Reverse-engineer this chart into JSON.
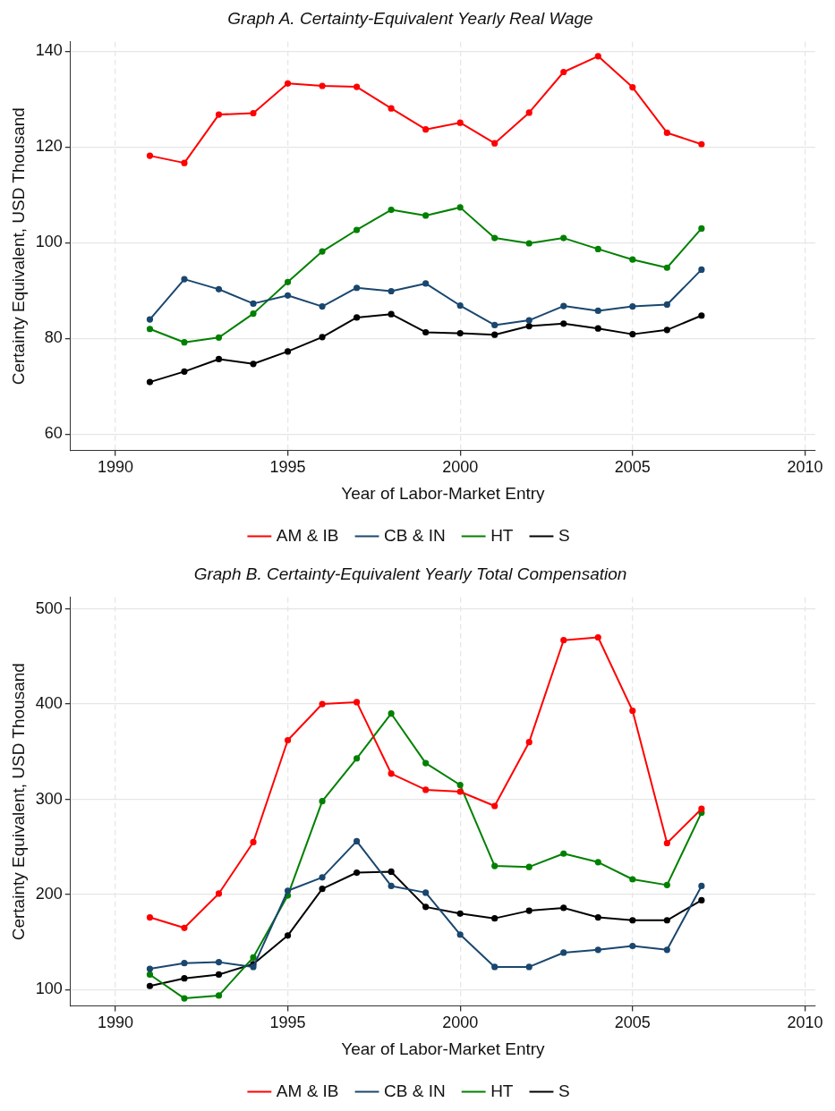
{
  "chart_data": [
    {
      "type": "line",
      "title": "Graph A. Certainty-Equivalent Yearly Real Wage",
      "xlabel": "Year of Labor-Market Entry",
      "ylabel": "Certainty Equivalent, USD Thousand",
      "x": [
        1991,
        1992,
        1993,
        1994,
        1995,
        1996,
        1997,
        1998,
        1999,
        2000,
        2001,
        2002,
        2003,
        2004,
        2005,
        2006,
        2007
      ],
      "series": [
        {
          "name": "AM & IB",
          "color": "#ff0000",
          "values": [
            118.2,
            116.7,
            126.8,
            127.1,
            133.3,
            132.8,
            132.6,
            128.1,
            123.7,
            125.1,
            120.8,
            127.2,
            135.7,
            139.0,
            132.5,
            123.0,
            120.6
          ]
        },
        {
          "name": "CB & IN",
          "color": "#1a476f",
          "values": [
            84.0,
            92.4,
            90.3,
            87.3,
            89.0,
            86.7,
            90.6,
            89.9,
            91.5,
            86.9,
            82.8,
            83.8,
            86.8,
            85.8,
            86.7,
            87.1,
            94.4
          ]
        },
        {
          "name": "HT",
          "color": "#008000",
          "values": [
            82.0,
            79.2,
            80.2,
            85.2,
            91.8,
            98.2,
            102.7,
            106.9,
            105.7,
            107.4,
            101.0,
            99.9,
            101.0,
            98.7,
            96.5,
            94.8,
            103.0
          ]
        },
        {
          "name": "S",
          "color": "#000000",
          "values": [
            70.9,
            73.1,
            75.7,
            74.7,
            77.3,
            80.3,
            84.4,
            85.1,
            81.3,
            81.1,
            80.8,
            82.6,
            83.1,
            82.1,
            80.9,
            81.8,
            84.8
          ]
        }
      ],
      "xlim": [
        1988.7,
        2010.3
      ],
      "xticks": [
        1990,
        1995,
        2000,
        2005,
        2010
      ],
      "ylim": [
        56.6,
        142
      ],
      "yticks": [
        60,
        80,
        100,
        120,
        140
      ],
      "grid": true,
      "legend": "bottom",
      "marker": "circle",
      "line_style": "solid"
    },
    {
      "type": "line",
      "title": "Graph B. Certainty-Equivalent Yearly Total Compensation",
      "xlabel": "Year of Labor-Market Entry",
      "ylabel": "Certainty Equivalent, USD Thousand",
      "x": [
        1991,
        1992,
        1993,
        1994,
        1995,
        1996,
        1997,
        1998,
        1999,
        2000,
        2001,
        2002,
        2003,
        2004,
        2005,
        2006,
        2007
      ],
      "series": [
        {
          "name": "AM & IB",
          "color": "#ff0000",
          "values": [
            176,
            165,
            201,
            255,
            362,
            400,
            402,
            327,
            310,
            308,
            293,
            360,
            467,
            470,
            393,
            254,
            290
          ]
        },
        {
          "name": "CB & IN",
          "color": "#1a476f",
          "values": [
            122,
            128,
            129,
            124,
            204,
            218,
            256,
            209,
            202,
            158,
            124,
            124,
            139,
            142,
            146,
            142,
            209
          ]
        },
        {
          "name": "HT",
          "color": "#008000",
          "values": [
            116,
            91,
            94,
            134,
            199,
            298,
            343,
            390,
            338,
            315,
            230,
            229,
            243,
            234,
            216,
            210,
            286
          ]
        },
        {
          "name": "S",
          "color": "#000000",
          "values": [
            104,
            112,
            116,
            127,
            157,
            206,
            223,
            224,
            187,
            180,
            175,
            183,
            186,
            176,
            173,
            173,
            194
          ]
        }
      ],
      "xlim": [
        1988.7,
        2010.3
      ],
      "xticks": [
        1990,
        1995,
        2000,
        2005,
        2010
      ],
      "ylim": [
        83,
        512
      ],
      "yticks": [
        100,
        200,
        300,
        400,
        500
      ],
      "grid": true,
      "legend": "bottom",
      "marker": "circle",
      "line_style": "solid"
    }
  ]
}
